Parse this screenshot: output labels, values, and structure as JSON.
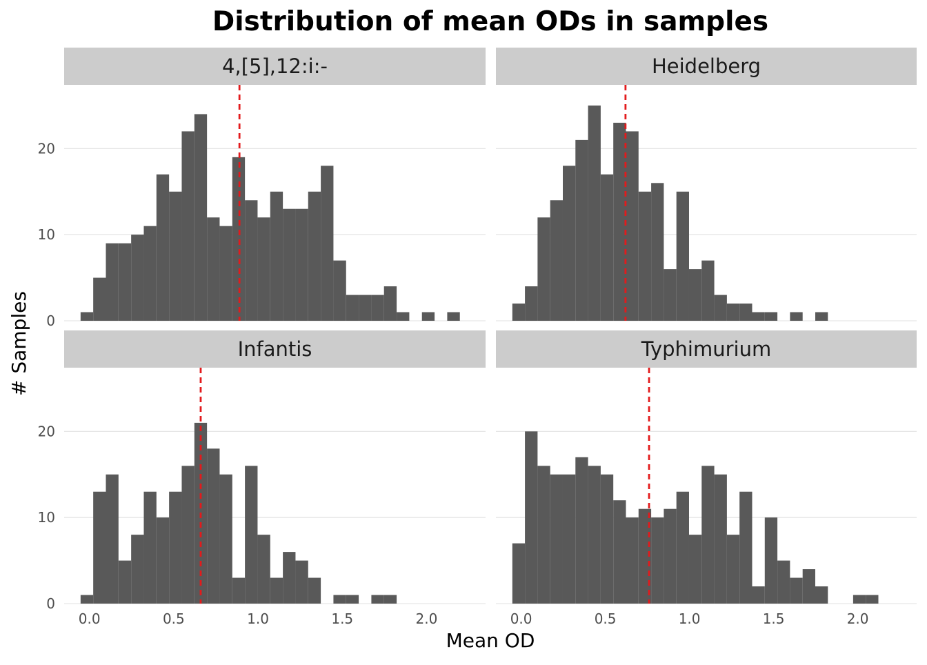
{
  "chart_data": {
    "type": "bar",
    "title": "Distribution of mean ODs in samples",
    "xlabel": "Mean OD",
    "ylabel": "# Samples",
    "grid": true,
    "bin_width": 0.075,
    "x_ticks": [
      0.0,
      0.5,
      1.0,
      1.5,
      2.0
    ],
    "x_tick_labels": [
      "0.0",
      "0.5",
      "1.0",
      "1.5",
      "2.0"
    ],
    "y_ticks": [
      0,
      10,
      20
    ],
    "y_tick_labels": [
      "0",
      "10",
      "20"
    ],
    "xlim": [
      -0.15,
      2.35
    ],
    "ylim": [
      0,
      27.4
    ],
    "bar_color": "#595959",
    "mean_line_color": "#e31a1c",
    "strip_color": "#cccccc",
    "grid_color": "#e6e6e6",
    "panels": [
      {
        "name": "4,[5],12:i:-",
        "mean": 0.89,
        "bin_centers": [
          -0.015,
          0.06,
          0.135,
          0.21,
          0.285,
          0.36,
          0.435,
          0.51,
          0.585,
          0.66,
          0.735,
          0.81,
          0.885,
          0.96,
          1.035,
          1.11,
          1.185,
          1.26,
          1.335,
          1.41,
          1.485,
          1.56,
          1.635,
          1.71,
          1.785,
          1.86,
          1.935,
          2.01,
          2.085,
          2.16
        ],
        "counts": [
          1,
          5,
          9,
          9,
          10,
          11,
          17,
          15,
          22,
          24,
          12,
          11,
          19,
          14,
          12,
          15,
          13,
          13,
          15,
          18,
          7,
          3,
          3,
          3,
          4,
          1,
          0,
          1,
          0,
          1
        ]
      },
      {
        "name": "Heidelberg",
        "mean": 0.62,
        "bin_centers": [
          -0.015,
          0.06,
          0.135,
          0.21,
          0.285,
          0.36,
          0.435,
          0.51,
          0.585,
          0.66,
          0.735,
          0.81,
          0.885,
          0.96,
          1.035,
          1.11,
          1.185,
          1.26,
          1.335,
          1.41,
          1.485,
          1.56,
          1.635,
          1.71,
          1.785
        ],
        "counts": [
          2,
          4,
          12,
          14,
          18,
          21,
          25,
          17,
          23,
          22,
          15,
          16,
          6,
          15,
          6,
          7,
          3,
          2,
          2,
          1,
          1,
          0,
          1,
          0,
          1
        ]
      },
      {
        "name": "Infantis",
        "mean": 0.66,
        "bin_centers": [
          -0.015,
          0.06,
          0.135,
          0.21,
          0.285,
          0.36,
          0.435,
          0.51,
          0.585,
          0.66,
          0.735,
          0.81,
          0.885,
          0.96,
          1.035,
          1.11,
          1.185,
          1.26,
          1.335,
          1.41,
          1.485,
          1.56,
          1.635,
          1.71,
          1.785
        ],
        "counts": [
          1,
          13,
          15,
          5,
          8,
          13,
          10,
          13,
          16,
          21,
          18,
          15,
          3,
          16,
          8,
          3,
          6,
          5,
          3,
          0,
          1,
          1,
          0,
          1,
          1
        ]
      },
      {
        "name": "Typhimurium",
        "mean": 0.76,
        "bin_centers": [
          -0.015,
          0.06,
          0.135,
          0.21,
          0.285,
          0.36,
          0.435,
          0.51,
          0.585,
          0.66,
          0.735,
          0.81,
          0.885,
          0.96,
          1.035,
          1.11,
          1.185,
          1.26,
          1.335,
          1.41,
          1.485,
          1.56,
          1.635,
          1.71,
          1.785,
          1.86,
          1.935,
          2.01,
          2.085
        ],
        "counts": [
          7,
          20,
          16,
          15,
          15,
          17,
          16,
          15,
          12,
          10,
          11,
          10,
          11,
          13,
          8,
          16,
          15,
          8,
          13,
          2,
          10,
          5,
          3,
          4,
          2,
          0,
          0,
          1,
          1
        ]
      }
    ]
  }
}
